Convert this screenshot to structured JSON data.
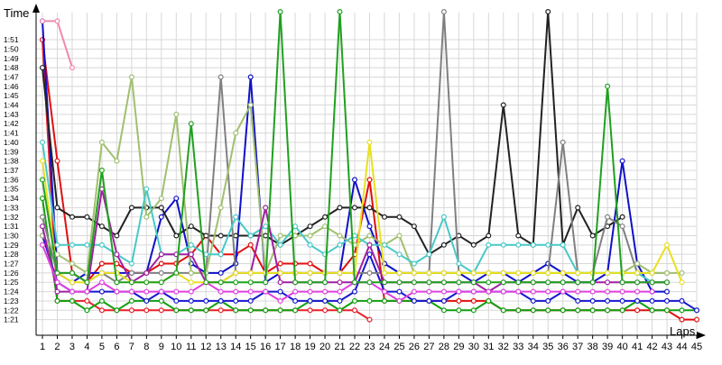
{
  "chart_data": {
    "type": "line",
    "title": "",
    "ylabel": "Time",
    "xlabel": "Laps",
    "y_unit": "minutes:seconds",
    "ylim": [
      "1:20",
      "1:54"
    ],
    "grid": true,
    "legend": "none",
    "x": [
      1,
      2,
      3,
      4,
      5,
      6,
      7,
      8,
      9,
      10,
      11,
      12,
      13,
      14,
      15,
      16,
      17,
      18,
      19,
      20,
      21,
      22,
      23,
      24,
      25,
      26,
      27,
      28,
      29,
      30,
      31,
      32,
      33,
      34,
      35,
      36,
      37,
      38,
      39,
      40,
      41,
      42,
      43,
      44,
      45
    ],
    "x_tick_labels": [
      "1",
      "2",
      "3",
      "4",
      "5",
      "6",
      "7",
      "8",
      "9",
      "10",
      "11",
      "12",
      "13",
      "14",
      "15",
      "16",
      "17",
      "18",
      "19",
      "20",
      "21",
      "22",
      "23",
      "24",
      "25",
      "26",
      "27",
      "28",
      "29",
      "30",
      "31",
      "32",
      "33",
      "34",
      "35",
      "36",
      "37",
      "38",
      "39",
      "40",
      "41",
      "42",
      "43",
      "44",
      "45"
    ],
    "y_tick_labels": [
      "1:21",
      "1:22",
      "1:23",
      "1:24",
      "1:25",
      "1:26",
      "1:27",
      "1:28",
      "1:29",
      "1:30",
      "1:31",
      "1:32",
      "1:33",
      "1:34",
      "1:35",
      "1:36",
      "1:37",
      "1:38",
      "1:39",
      "1:40",
      "1:41",
      "1:42",
      "1:43",
      "1:44",
      "1:45",
      "1:46",
      "1:47",
      "1:48",
      "1:49",
      "1:50",
      "1:51"
    ],
    "series": [
      {
        "color": "#e01010",
        "values": [
          "1:51",
          "1:38",
          "1:26",
          "1:25",
          "1:27",
          "1:27",
          "1:26",
          "1:26",
          "1:27",
          "1:27",
          "1:28",
          "1:30",
          "1:28",
          "1:28",
          "1:29",
          "1:26",
          "1:27",
          "1:27",
          "1:27",
          "1:26",
          "1:26",
          "1:28",
          "1:36",
          "1:23",
          "1:23",
          "1:23",
          "1:23",
          "1:23",
          "1:23",
          "1:23",
          "1:23",
          "1:22",
          "1:22",
          "1:22",
          "1:22",
          "1:22",
          "1:22",
          "1:22",
          "1:22",
          "1:22",
          "1:22",
          "1:22",
          "1:22",
          "1:21",
          "1:21"
        ]
      },
      {
        "color": "#e8202a",
        "values": [
          "1:51",
          "1:23",
          "1:23",
          "1:23",
          "1:22",
          "1:22",
          "1:22",
          "1:22",
          "1:22",
          "1:22",
          "1:22",
          "1:22",
          "1:22",
          "1:22",
          "1:22",
          "1:22",
          "1:22",
          "1:22",
          "1:22",
          "1:22",
          "1:22",
          "1:22",
          "1:21",
          "null",
          "null",
          "null",
          "null",
          "null",
          "null",
          "null",
          "null",
          "null",
          "null",
          "null",
          "null",
          "null",
          "null",
          "null",
          "null",
          "null",
          "null",
          "null",
          "null",
          "null",
          "null"
        ]
      },
      {
        "color": "#10a010",
        "values": [
          "1:34",
          "1:23",
          "1:23",
          "1:22",
          "1:23",
          "1:22",
          "1:23",
          "1:23",
          "1:23",
          "1:22",
          "1:22",
          "1:22",
          "1:23",
          "1:22",
          "1:22",
          "1:22",
          "1:22",
          "1:22",
          "1:23",
          "1:23",
          "1:22",
          "1:23",
          "1:23",
          "1:23",
          "1:23",
          "1:23",
          "1:23",
          "1:22",
          "1:22",
          "1:22",
          "1:23",
          "1:22",
          "1:22",
          "1:22",
          "1:22",
          "1:22",
          "1:22",
          "1:22",
          "1:22",
          "1:22",
          "1:23",
          "1:22",
          "1:22",
          "1:22",
          "1:22"
        ]
      },
      {
        "color": "#1818d0",
        "values": [
          "1:30",
          "1:25",
          "1:24",
          "1:24",
          "1:24",
          "1:24",
          "1:24",
          "1:23",
          "1:24",
          "1:23",
          "1:23",
          "1:23",
          "1:23",
          "1:23",
          "1:23",
          "1:24",
          "1:24",
          "1:23",
          "1:23",
          "1:23",
          "1:23",
          "1:24",
          "1:28",
          "1:24",
          "1:24",
          "1:23",
          "1:23",
          "1:23",
          "1:24",
          "1:24",
          "1:24",
          "1:24",
          "1:24",
          "1:23",
          "1:23",
          "1:24",
          "1:23",
          "1:23",
          "1:23",
          "1:23",
          "1:23",
          "1:23",
          "1:23",
          "1:23",
          "1:22"
        ]
      },
      {
        "color": "#1010c8",
        "values": [
          "1:53",
          "1:26",
          "1:25",
          "1:26",
          "1:26",
          "1:26",
          "1:26",
          "1:26",
          "1:32",
          "1:34",
          "1:27",
          "1:26",
          "1:26",
          "1:27",
          "1:47",
          "1:25",
          "1:26",
          "1:26",
          "1:26",
          "1:26",
          "1:26",
          "1:36",
          "1:31",
          "1:27",
          "1:26",
          "1:26",
          "1:26",
          "1:26",
          "1:26",
          "1:25",
          "1:26",
          "1:26",
          "1:25",
          "1:26",
          "1:27",
          "1:26",
          "1:25",
          "1:25",
          "1:26",
          "1:38",
          "1:27",
          "1:24",
          "1:24",
          "null",
          "null"
        ]
      },
      {
        "color": "#222222",
        "values": [
          "1:48",
          "1:33",
          "1:32",
          "1:32",
          "1:31",
          "1:30",
          "1:33",
          "1:33",
          "1:33",
          "1:30",
          "1:31",
          "1:30",
          "1:30",
          "1:30",
          "1:30",
          "1:30",
          "1:29",
          "1:30",
          "1:31",
          "1:32",
          "1:33",
          "1:33",
          "1:33",
          "1:32",
          "1:32",
          "1:31",
          "1:28",
          "1:29",
          "1:30",
          "1:29",
          "1:30",
          "1:44",
          "1:30",
          "1:29",
          "1:54",
          "1:29",
          "1:33",
          "1:30",
          "1:31",
          "1:32",
          "null",
          "null",
          "null",
          "null",
          "null"
        ]
      },
      {
        "color": "#808080",
        "values": [
          "1:32",
          "1:26",
          "1:26",
          "1:25",
          "1:26",
          "1:25",
          "1:26",
          "1:26",
          "1:26",
          "1:26",
          "1:26",
          "1:26",
          "1:47",
          "1:26",
          "1:26",
          "1:26",
          "1:26",
          "1:26",
          "1:26",
          "1:26",
          "1:26",
          "1:26",
          "1:26",
          "1:26",
          "1:26",
          "1:26",
          "1:26",
          "1:54",
          "1:26",
          "1:26",
          "1:26",
          "1:26",
          "1:26",
          "1:26",
          "1:26",
          "1:40",
          "1:26",
          "1:26",
          "1:32",
          "1:31",
          "1:26",
          "1:26",
          "1:26",
          "null",
          "null"
        ]
      },
      {
        "color": "#a0c070",
        "values": [
          "1:30",
          "1:28",
          "1:27",
          "1:26",
          "1:40",
          "1:38",
          "1:47",
          "1:32",
          "1:34",
          "1:43",
          "1:26",
          "1:26",
          "1:33",
          "1:41",
          "1:44",
          "1:26",
          "1:30",
          "1:30",
          "1:30",
          "1:31",
          "1:30",
          "1:29",
          "1:30",
          "1:29",
          "1:30",
          "1:26",
          "1:26",
          "1:26",
          "1:26",
          "1:26",
          "1:26",
          "1:26",
          "1:26",
          "1:26",
          "1:26",
          "1:26",
          "1:26",
          "1:26",
          "1:26",
          "1:26",
          "1:27",
          "1:26",
          "1:26",
          "1:26",
          "null"
        ]
      },
      {
        "color": "#48c8c8",
        "values": [
          "1:40",
          "1:29",
          "1:29",
          "1:29",
          "1:29",
          "1:28",
          "1:27",
          "1:35",
          "1:28",
          "1:28",
          "1:29",
          "1:28",
          "1:28",
          "1:32",
          "1:30",
          "1:31",
          "1:29",
          "1:31",
          "1:29",
          "1:28",
          "1:29",
          "1:30",
          "1:29",
          "1:29",
          "1:28",
          "1:27",
          "1:28",
          "1:32",
          "1:27",
          "1:26",
          "1:29",
          "1:29",
          "1:29",
          "1:29",
          "1:29",
          "1:29",
          "1:26",
          "1:26",
          "1:26",
          "1:26",
          "1:26",
          "1:25",
          "1:25",
          "null",
          "null"
        ]
      },
      {
        "color": "#a020a0",
        "values": [
          "1:31",
          "1:24",
          "1:24",
          "1:24",
          "1:35",
          "1:28",
          "1:25",
          "1:26",
          "1:28",
          "1:28",
          "1:28",
          "1:25",
          "1:25",
          "1:26",
          "1:26",
          "1:33",
          "1:25",
          "1:25",
          "1:25",
          "1:25",
          "1:25",
          "1:25",
          "1:29",
          "1:25",
          "1:25",
          "1:25",
          "1:25",
          "1:25",
          "1:25",
          "1:25",
          "1:24",
          "1:25",
          "1:25",
          "1:25",
          "1:25",
          "1:25",
          "1:25",
          "1:25",
          "1:25",
          "1:25",
          "1:25",
          "1:25",
          "1:25",
          "null",
          "null"
        ]
      },
      {
        "color": "#e040e0",
        "values": [
          "1:29",
          "1:25",
          "1:24",
          "1:24",
          "1:25",
          "1:24",
          "1:24",
          "1:24",
          "1:24",
          "1:24",
          "1:24",
          "1:25",
          "1:24",
          "1:24",
          "1:24",
          "1:24",
          "1:23",
          "1:24",
          "1:24",
          "1:24",
          "1:24",
          "1:25",
          "1:25",
          "1:24",
          "1:23",
          "1:24",
          "1:24",
          "1:24",
          "1:24",
          "1:24",
          "1:24",
          "1:24",
          "1:24",
          "1:24",
          "1:24",
          "1:24",
          "1:24",
          "1:24",
          "1:24",
          "1:24",
          "1:24",
          "1:24",
          "null",
          "null",
          "null"
        ]
      },
      {
        "color": "#e8e020",
        "values": [
          "1:38",
          "1:26",
          "1:25",
          "1:25",
          "1:26",
          "1:26",
          "1:25",
          "1:25",
          "1:25",
          "1:26",
          "1:25",
          "1:25",
          "1:25",
          "1:26",
          "1:26",
          "1:26",
          "1:26",
          "1:26",
          "1:26",
          "1:26",
          "1:26",
          "1:26",
          "1:40",
          "1:26",
          "1:26",
          "1:26",
          "1:26",
          "1:26",
          "1:26",
          "1:26",
          "1:26",
          "1:26",
          "1:26",
          "1:26",
          "1:26",
          "1:26",
          "1:26",
          "1:26",
          "1:26",
          "1:26",
          "1:26",
          "1:26",
          "1:29",
          "1:25",
          "null"
        ]
      },
      {
        "color": "#f088b0",
        "values": [
          "1:53",
          "1:53",
          "1:48",
          "null",
          "null",
          "null",
          "null",
          "null",
          "null",
          "null",
          "null",
          "null",
          "null",
          "null",
          "null",
          "null",
          "null",
          "null",
          "null",
          "null",
          "null",
          "null",
          "null",
          "null",
          "null",
          "null",
          "null",
          "null",
          "null",
          "null",
          "null",
          "null",
          "null",
          "null",
          "null",
          "null",
          "null",
          "null",
          "null",
          "null",
          "null",
          "null",
          "null",
          "null",
          "null"
        ]
      },
      {
        "color": "#20a020",
        "values": [
          "1:36",
          "1:26",
          "1:26",
          "1:25",
          "1:37",
          "1:25",
          "1:25",
          "1:25",
          "1:25",
          "1:26",
          "1:42",
          "1:25",
          "1:25",
          "1:25",
          "1:25",
          "1:25",
          "1:54",
          "1:25",
          "1:25",
          "1:25",
          "1:54",
          "1:25",
          "1:25",
          "1:25",
          "1:25",
          "1:25",
          "1:25",
          "1:25",
          "1:25",
          "1:25",
          "1:25",
          "1:25",
          "1:25",
          "1:25",
          "1:25",
          "1:25",
          "1:25",
          "1:25",
          "1:46",
          "1:25",
          "1:25",
          "1:25",
          "1:25",
          "null",
          "null"
        ]
      }
    ]
  }
}
